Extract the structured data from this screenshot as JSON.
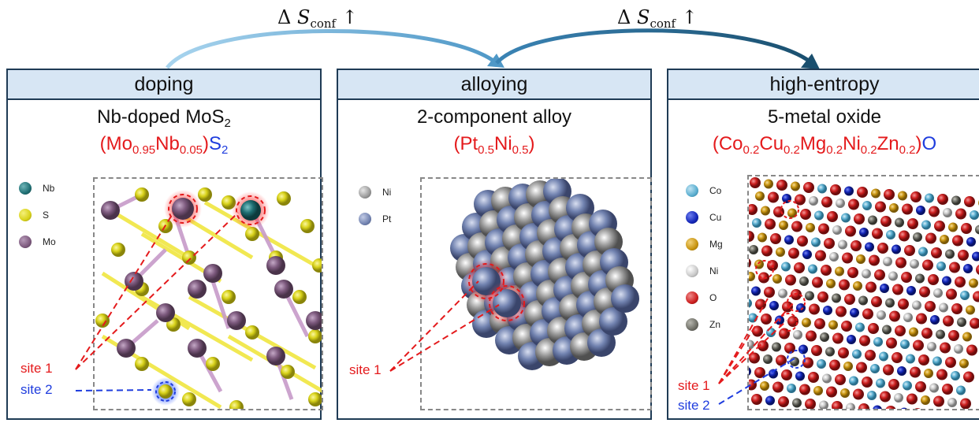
{
  "arrows": [
    {
      "delta": "Δ",
      "symbol": "S",
      "subscript": "conf",
      "up": "↑"
    },
    {
      "delta": "Δ",
      "symbol": "S",
      "subscript": "conf",
      "up": "↑"
    }
  ],
  "panels": [
    {
      "header": "doping",
      "subtitle_main": "Nb-doped MoS",
      "subtitle_sub": "2",
      "formula": {
        "open": "(",
        "a": "Mo",
        "a_sub": "0.95",
        "b": "Nb",
        "b_sub": "0.05",
        "close": ")",
        "c": "S",
        "c_sub": "2"
      },
      "legend": [
        "Nb",
        "S",
        "Mo"
      ],
      "sites": [
        "site 1",
        "site 2"
      ]
    },
    {
      "header": "alloying",
      "subtitle_main": "2-component alloy",
      "formula": {
        "open": "(",
        "a": "Pt",
        "a_sub": "0.5",
        "b": "Ni",
        "b_sub": "0.5",
        "close": ")"
      },
      "legend": [
        "Ni",
        "Pt"
      ],
      "sites": [
        "site 1"
      ]
    },
    {
      "header": "high-entropy",
      "subtitle_main": "5-metal oxide",
      "formula": {
        "open": "(",
        "a": "Co",
        "a_sub": "0.2",
        "b": "Cu",
        "b_sub": "0.2",
        "c": "Mg",
        "c_sub": "0.2",
        "d": "Ni",
        "d_sub": "0.2",
        "e": "Zn",
        "e_sub": "0.2",
        "close": ")",
        "f": "O"
      },
      "legend": [
        "Co",
        "Cu",
        "Mg",
        "Ni",
        "O",
        "Zn"
      ],
      "sites": [
        "site 1",
        "site 2"
      ]
    }
  ],
  "colors": {
    "Nb": "#1f6f73",
    "S": "#d8d21a",
    "Mo": "#7d5a7e",
    "Ni": "#9a9a9a",
    "Pt": "#7283b0",
    "Co": "#5aaed0",
    "Cu": "#1326b8",
    "Mg": "#c89410",
    "NiHE": "#c8c8c8",
    "O": "#cc1f1f",
    "Zn": "#6e6e66",
    "frame": "#1f3b55",
    "header_bg": "#d7e6f4",
    "accent_red": "#e41a1c",
    "accent_blue": "#1f3dde"
  }
}
